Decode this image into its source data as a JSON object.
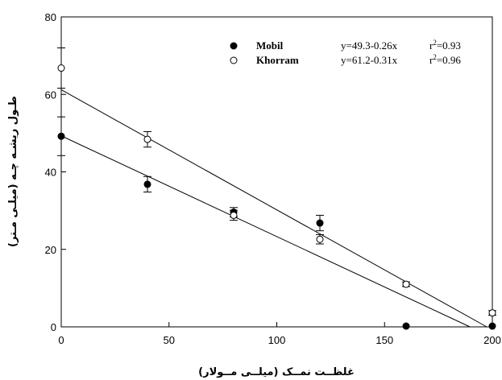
{
  "chart_data": {
    "type": "scatter",
    "xlabel": "غلظــت نمــک (میلــی مــولار)",
    "ylabel": "طـول ریشـه چـه (میلـی مـتر)",
    "xlim": [
      0,
      200
    ],
    "ylim": [
      0,
      80
    ],
    "xticks": [
      0,
      50,
      100,
      150,
      200
    ],
    "yticks": [
      0,
      20,
      40,
      60,
      80
    ],
    "grid": false,
    "legend_position": "top-right",
    "series": [
      {
        "name": "Mobil",
        "marker": "filled-circle",
        "x": [
          0,
          40,
          80,
          120,
          160,
          200
        ],
        "y": [
          49.2,
          36.8,
          29.6,
          26.8,
          0.2,
          0.2
        ],
        "err": [
          5.0,
          2.0,
          1.2,
          2.0,
          0,
          0
        ],
        "fit": {
          "intercept": 49.3,
          "slope": -0.26
        },
        "equation": "y=49.3-0.26x",
        "r2_label": "r",
        "r2_sup": "2",
        "r2_value": "=0.93"
      },
      {
        "name": "Khorram",
        "marker": "open-circle",
        "x": [
          0,
          40,
          80,
          120,
          160,
          200
        ],
        "y": [
          66.8,
          48.4,
          28.8,
          22.6,
          11.0,
          3.6
        ],
        "err": [
          5.2,
          2.0,
          1.3,
          1.2,
          0.6,
          0.6
        ],
        "fit": {
          "intercept": 61.2,
          "slope": -0.31
        },
        "equation": "y=61.2-0.31x",
        "r2_label": "r",
        "r2_sup": "2",
        "r2_value": "=0.96"
      }
    ]
  }
}
